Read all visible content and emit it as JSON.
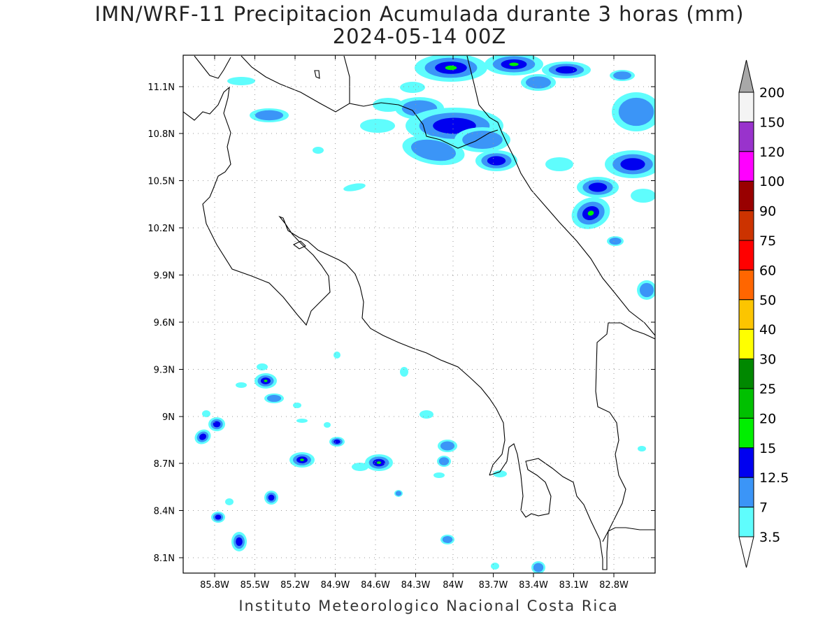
{
  "title_line1": "IMN/WRF-11 Precipitacion Acumulada durante 3 horas (mm)",
  "title_line2": "2024-05-14 00Z",
  "credit": "Instituto Meteorologico Nacional Costa Rica",
  "lon_ticks": [
    "85.8W",
    "85.5W",
    "85.2W",
    "84.9W",
    "84.6W",
    "84.3W",
    "84W",
    "83.7W",
    "83.4W",
    "83.1W",
    "82.8W"
  ],
  "lat_ticks": [
    "11.1N",
    "10.8N",
    "10.5N",
    "10.2N",
    "9.9N",
    "9.6N",
    "9.3N",
    "9N",
    "8.7N",
    "8.4N",
    "8.1N"
  ],
  "colorbar": {
    "levels": [
      "3.5",
      "7",
      "12.5",
      "15",
      "20",
      "25",
      "30",
      "40",
      "50",
      "60",
      "75",
      "90",
      "100",
      "120",
      "150",
      "200"
    ],
    "colors": [
      "#5ffdfd",
      "#3b95f7",
      "#0000f0",
      "#00ef00",
      "#00c000",
      "#008800",
      "#ffff00",
      "#fcc500",
      "#ff6600",
      "#ff0000",
      "#cc3300",
      "#990000",
      "#ff00ff",
      "#9933cc",
      "#f4f4f4",
      "#a8a8a8",
      "#ffffff"
    ]
  },
  "map_colors": {
    "c1": "#5ffdfd",
    "c2": "#3b95f7",
    "c3": "#0000f0",
    "c4": "#00ef00",
    "c5": "#00c000",
    "coast": "#000000",
    "grid": "#999999"
  }
}
